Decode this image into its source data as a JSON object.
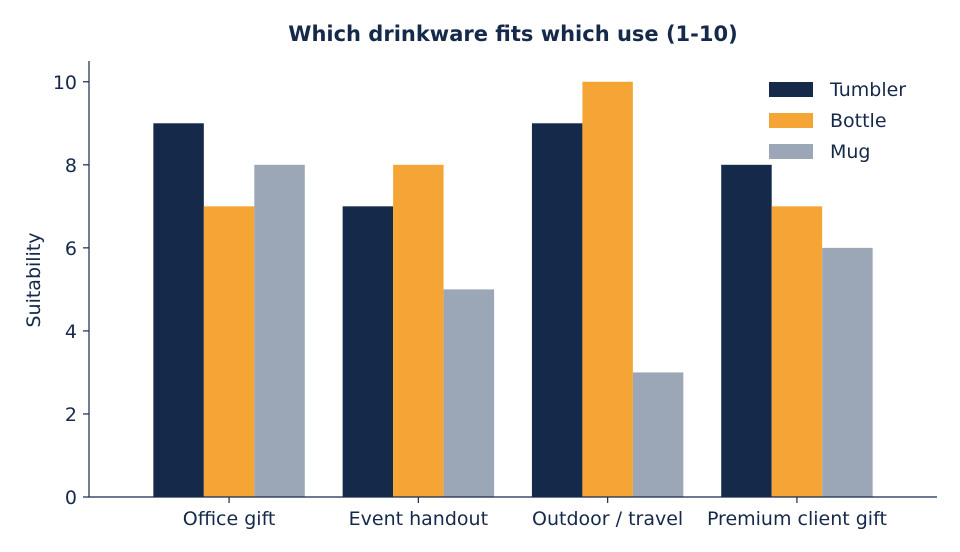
{
  "chart_data": {
    "type": "bar",
    "title": "Which drinkware fits which use (1-10)",
    "xlabel": "",
    "ylabel": "Suitability",
    "ylim": [
      0,
      10.5
    ],
    "yticks": [
      0,
      2,
      4,
      6,
      8,
      10
    ],
    "categories": [
      "Office gift",
      "Event handout",
      "Outdoor / travel",
      "Premium client gift"
    ],
    "series": [
      {
        "name": "Tumbler",
        "color": "#15294a",
        "values": [
          9,
          7,
          9,
          8
        ]
      },
      {
        "name": "Bottle",
        "color": "#f5a535",
        "values": [
          7,
          8,
          10,
          7
        ]
      },
      {
        "name": "Mug",
        "color": "#9ba7b7",
        "values": [
          8,
          5,
          3,
          6
        ]
      }
    ],
    "grid": false,
    "legend_position": "top-right"
  }
}
